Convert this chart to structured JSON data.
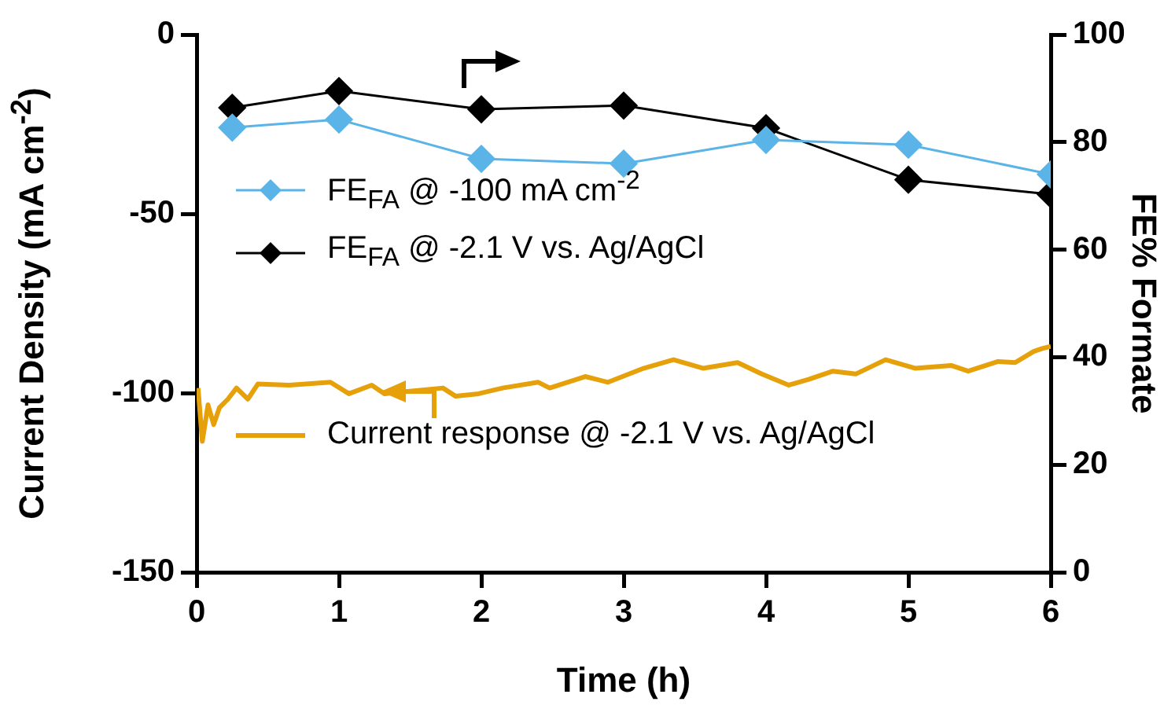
{
  "chart_data": {
    "type": "line",
    "xlabel": "Time (h)",
    "ylabel": "Current Density (mA cm$^{-2}$)",
    "y2label": "FE% Formate",
    "xlim": [
      0,
      6
    ],
    "xticks": [
      0,
      1,
      2,
      3,
      4,
      5,
      6
    ],
    "ylim": [
      -150,
      0
    ],
    "yticks": [
      0,
      -50,
      -100,
      -150
    ],
    "y2lim": [
      0,
      100
    ],
    "y2ticks": [
      0,
      20,
      40,
      60,
      80,
      100
    ],
    "grid": false,
    "legend": "left",
    "line_style": "solid",
    "series": [
      {
        "name": "FE$_{FA}$ @ -100 mA cm$^{-2}$",
        "color": "#5ab4e8",
        "axis": "y2",
        "marker": "diamond",
        "x": [
          0.25,
          1,
          2,
          3,
          4,
          5,
          6
        ],
        "values": [
          82.7,
          84.2,
          76.9,
          76.0,
          80.4,
          79.5,
          74.0
        ]
      },
      {
        "name": "FE$_{FA}$ @ -2.1 V vs. Ag/AgCl",
        "color": "#000000",
        "axis": "y2",
        "marker": "diamond",
        "x": [
          0.25,
          1,
          2,
          3,
          4,
          5,
          6
        ],
        "values": [
          86.4,
          89.5,
          86.1,
          86.8,
          82.6,
          73.0,
          70.3
        ]
      },
      {
        "name": "Current response @ -2.1 V vs. Ag/AgCl",
        "color": "#e6a00a",
        "axis": "y",
        "marker": "none",
        "x": [
          0.01,
          0.04,
          0.08,
          0.12,
          0.16,
          0.22,
          0.28,
          0.36,
          0.43,
          0.65,
          0.94,
          1.07,
          1.23,
          1.32,
          1.73,
          1.82,
          1.98,
          2.15,
          2.4,
          2.48,
          2.73,
          2.89,
          3.14,
          3.35,
          3.56,
          3.8,
          3.97,
          4.16,
          4.3,
          4.47,
          4.63,
          4.84,
          5.05,
          5.3,
          5.42,
          5.63,
          5.75,
          5.88,
          5.94,
          6.0
        ],
        "values": [
          -98.6,
          -113.5,
          -103.3,
          -108.8,
          -104.1,
          -101.7,
          -98.6,
          -101.7,
          -97.5,
          -97.8,
          -97.0,
          -100.2,
          -97.8,
          -100.2,
          -98.6,
          -100.9,
          -100.2,
          -98.6,
          -97.0,
          -98.6,
          -95.4,
          -97.0,
          -93.1,
          -90.7,
          -93.1,
          -91.5,
          -94.7,
          -97.8,
          -96.2,
          -93.9,
          -94.7,
          -90.7,
          -93.1,
          -92.3,
          -93.9,
          -91.2,
          -91.5,
          -88.4,
          -87.6,
          -87.0
        ]
      }
    ]
  }
}
